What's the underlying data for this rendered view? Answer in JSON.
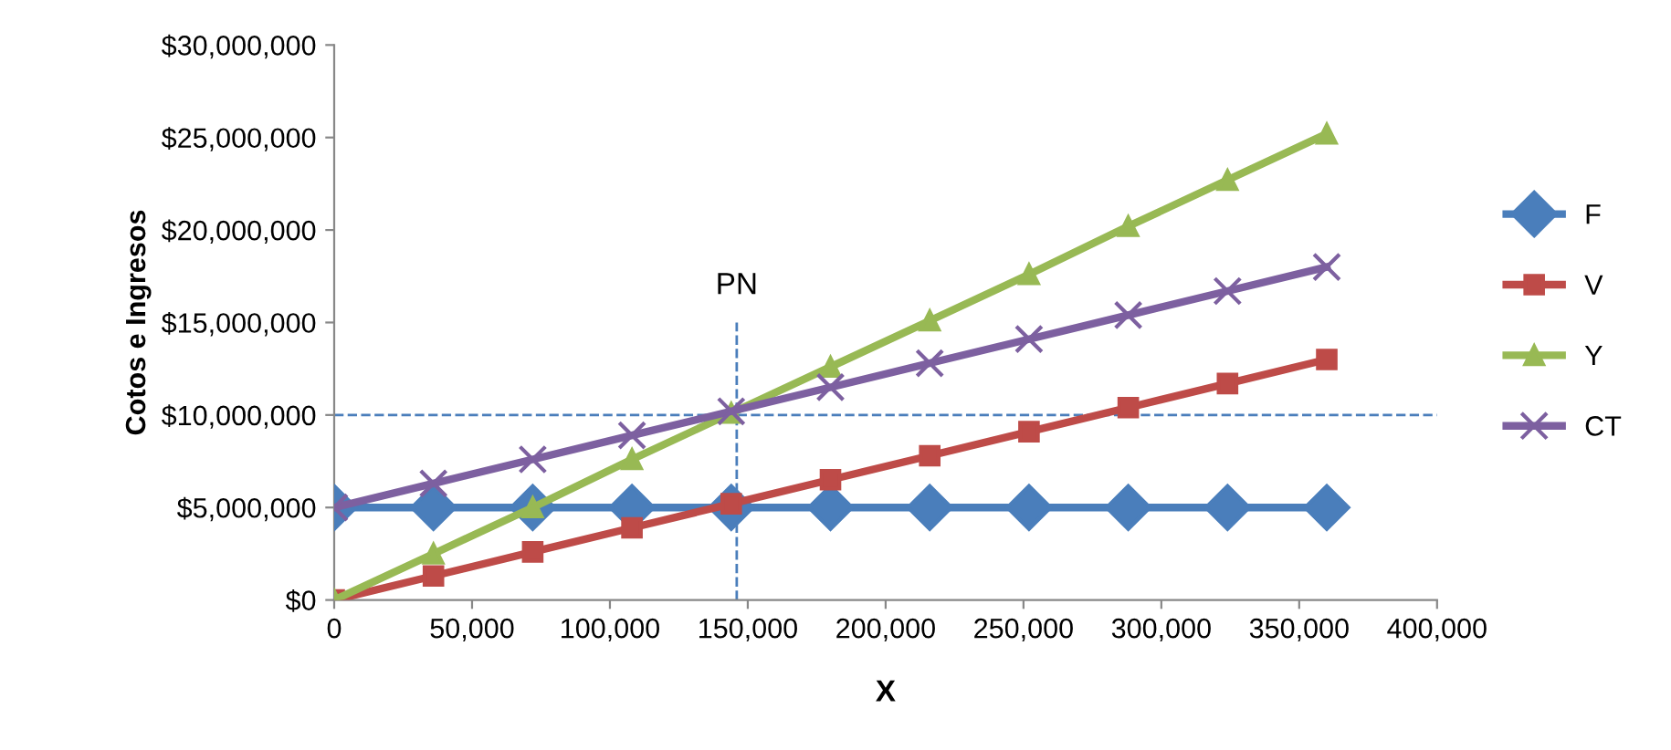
{
  "chart_data": {
    "type": "line",
    "xlabel": "X",
    "ylabel": "Cotos e Ingresos",
    "x": [
      0,
      36000,
      72000,
      108000,
      144000,
      180000,
      216000,
      252000,
      288000,
      324000,
      360000
    ],
    "series": [
      {
        "name": "F",
        "color": "#4a7ebb",
        "marker": "diamond",
        "values": [
          5000000,
          5000000,
          5000000,
          5000000,
          5000000,
          5000000,
          5000000,
          5000000,
          5000000,
          5000000,
          5000000
        ]
      },
      {
        "name": "V",
        "color": "#be4b48",
        "marker": "square",
        "values": [
          0,
          1300000,
          2600000,
          3900000,
          5200000,
          6500000,
          7800000,
          9100000,
          10400000,
          11700000,
          13000000
        ]
      },
      {
        "name": "Y",
        "color": "#98b954",
        "marker": "triangle",
        "values": [
          0,
          2500000,
          5000000,
          7600000,
          10100000,
          12600000,
          15100000,
          17600000,
          20200000,
          22700000,
          25200000
        ]
      },
      {
        "name": "CT",
        "color": "#7d60a0",
        "marker": "cross",
        "values": [
          5000000,
          6300000,
          7600000,
          8900000,
          10200000,
          11500000,
          12800000,
          14100000,
          15400000,
          16700000,
          18000000
        ]
      }
    ],
    "xlim": [
      0,
      400000
    ],
    "xticks": [
      0,
      {
        "value": 50000,
        "label": "50,000"
      },
      {
        "value": 100000,
        "label": "100,000"
      },
      {
        "value": 150000,
        "label": "150,000"
      },
      {
        "value": 200000,
        "label": "200,000"
      },
      {
        "value": 250000,
        "label": "250,000"
      },
      {
        "value": 300000,
        "label": "300,000"
      },
      {
        "value": 350000,
        "label": "350,000"
      },
      {
        "value": 400000,
        "label": "400,000"
      }
    ],
    "ylim": [
      0,
      30000000
    ],
    "yticks": [
      {
        "value": 0,
        "label": "$0"
      },
      {
        "value": 5000000,
        "label": "$5,000,000"
      },
      {
        "value": 10000000,
        "label": "$10,000,000"
      },
      {
        "value": 15000000,
        "label": "$15,000,000"
      },
      {
        "value": 20000000,
        "label": "$20,000,000"
      },
      {
        "value": 25000000,
        "label": "$25,000,000"
      },
      {
        "value": 30000000,
        "label": "$30,000,000"
      }
    ],
    "ref_lines": [
      {
        "axis": "x",
        "value": 146000,
        "label": "PN",
        "color": "#4a7ebb",
        "line_style": "dashed"
      },
      {
        "axis": "y",
        "value": 10000000,
        "color": "#4a7ebb",
        "line_style": "dashed"
      }
    ],
    "legend": "right",
    "grid": false,
    "line_style": "solid"
  }
}
